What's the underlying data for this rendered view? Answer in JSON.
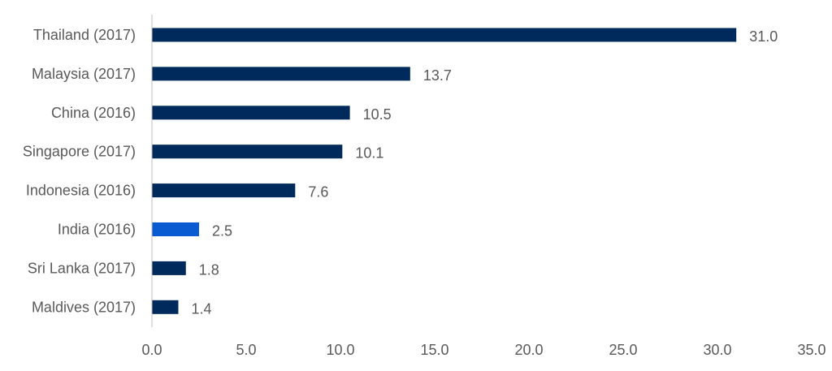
{
  "chart_data": {
    "type": "bar",
    "orientation": "horizontal",
    "title": "",
    "xlabel": "",
    "ylabel": "",
    "categories": [
      "Thailand (2017)",
      "Malaysia (2017)",
      "China (2016)",
      "Singapore (2017)",
      "Indonesia (2016)",
      "India (2016)",
      "Sri Lanka (2017)",
      "Maldives (2017)"
    ],
    "values": [
      31.0,
      13.7,
      10.5,
      10.1,
      7.6,
      2.5,
      1.8,
      1.4
    ],
    "value_labels": [
      "31.0",
      "13.7",
      "10.5",
      "10.1",
      "7.6",
      "2.5",
      "1.8",
      "1.4"
    ],
    "xlim": [
      0,
      35
    ],
    "x_ticks": [
      "0.0",
      "5.0",
      "10.0",
      "15.0",
      "20.0",
      "25.0",
      "30.0",
      "35.0"
    ],
    "grid": false,
    "legend": "none",
    "colors": {
      "bar": "#002a5c",
      "highlight_bar": "#0a5ad2",
      "highlight_category": "India (2016)",
      "axis": "#bfbfbf",
      "text": "#595959"
    }
  }
}
